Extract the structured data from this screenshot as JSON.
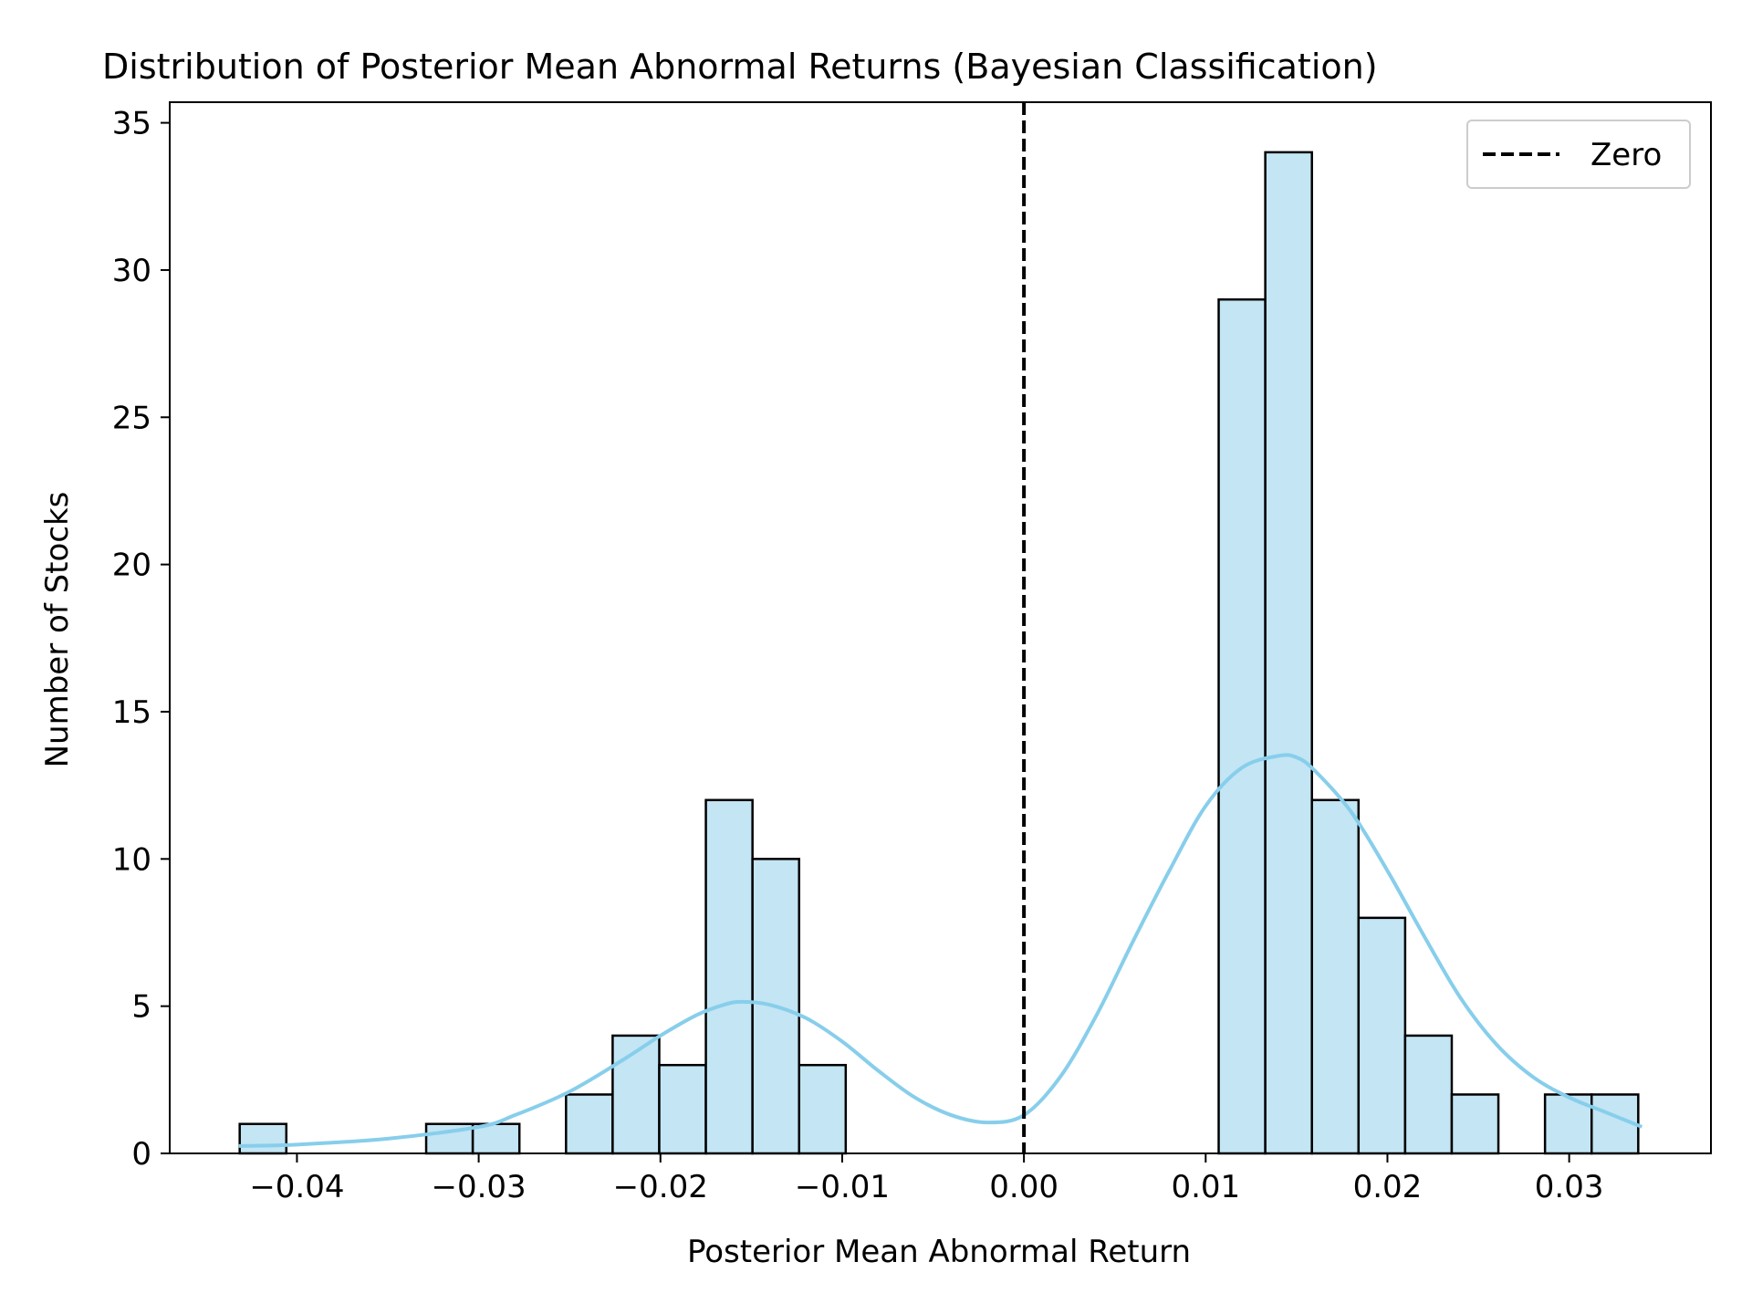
{
  "chart_data": {
    "type": "histogram",
    "title": "Distribution of Posterior Mean Abnormal Returns (Bayesian Classification)",
    "xlabel": "Posterior Mean Abnormal Return",
    "ylabel": "Number of Stocks",
    "xlim": [
      -0.047,
      0.0378
    ],
    "ylim": [
      0,
      35.7
    ],
    "xticks": [
      -0.04,
      -0.03,
      -0.02,
      -0.01,
      0.0,
      0.01,
      0.02,
      0.03
    ],
    "xtick_labels": [
      "−0.04",
      "−0.03",
      "−0.02",
      "−0.01",
      "0.00",
      "0.01",
      "0.02",
      "0.03"
    ],
    "yticks": [
      0,
      5,
      10,
      15,
      20,
      25,
      30,
      35
    ],
    "ytick_labels": [
      "0",
      "5",
      "10",
      "15",
      "20",
      "25",
      "30",
      "35"
    ],
    "bin_start": -0.04315,
    "bin_width": 0.002565,
    "counts": [
      1,
      0,
      0,
      0,
      1,
      1,
      0,
      2,
      4,
      3,
      12,
      10,
      3,
      0,
      0,
      0,
      0,
      0,
      0,
      0,
      0,
      29,
      34,
      12,
      8,
      4,
      2,
      0,
      2,
      2
    ],
    "bar_color": "#c3e5f4",
    "bar_edge_color": "#000000",
    "kde": {
      "color": "#87ceeb",
      "x": [
        -0.0432,
        -0.04,
        -0.035,
        -0.03,
        -0.028,
        -0.025,
        -0.022,
        -0.02,
        -0.018,
        -0.0165,
        -0.0155,
        -0.014,
        -0.012,
        -0.01,
        -0.008,
        -0.006,
        -0.004,
        -0.002,
        0.0,
        0.002,
        0.004,
        0.006,
        0.008,
        0.01,
        0.012,
        0.014,
        0.015,
        0.016,
        0.018,
        0.02,
        0.022,
        0.024,
        0.026,
        0.028,
        0.03,
        0.032,
        0.034
      ],
      "y": [
        0.25,
        0.3,
        0.5,
        0.9,
        1.3,
        2.1,
        3.2,
        4.0,
        4.7,
        5.05,
        5.15,
        5.05,
        4.6,
        3.8,
        2.8,
        1.9,
        1.3,
        1.05,
        1.3,
        2.6,
        4.7,
        7.2,
        9.6,
        11.8,
        13.1,
        13.5,
        13.45,
        13.0,
        11.6,
        9.6,
        7.4,
        5.3,
        3.7,
        2.6,
        1.9,
        1.4,
        0.9
      ]
    },
    "vline": {
      "x": 0.0,
      "label": "Zero",
      "style": "dashed",
      "color": "#000000"
    },
    "legend": {
      "position": "top-right",
      "entries": [
        "Zero"
      ]
    },
    "grid": false
  }
}
